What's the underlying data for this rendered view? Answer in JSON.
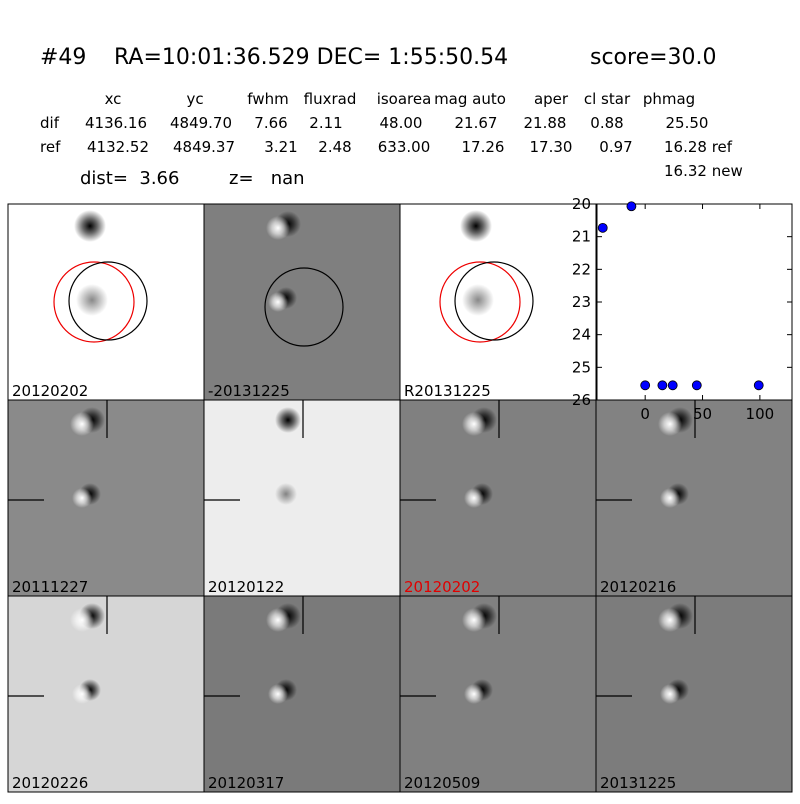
{
  "header": {
    "id": "#49",
    "coords": "RA=10:01:36.529 DEC= 1:55:50.54",
    "score": "score=30.0"
  },
  "table": {
    "columns": [
      "xc",
      "yc",
      "fwhm",
      "fluxrad",
      "isoarea",
      "mag auto",
      "aper",
      "cl star",
      "phmag"
    ],
    "rows": [
      {
        "label": "dif",
        "values": [
          "4136.16",
          "4849.70",
          "7.66",
          "2.11",
          "48.00",
          "21.67",
          "21.88",
          "0.88",
          "25.50"
        ]
      },
      {
        "label": "ref",
        "values": [
          "4132.52",
          "4849.37",
          "3.21",
          "2.48",
          "633.00",
          "17.26",
          "17.30",
          "0.97",
          "16.28 ref"
        ]
      }
    ],
    "extra": "16.32 new"
  },
  "dist": "dist=  3.66",
  "z": "z=   nan",
  "panels": [
    "20120202",
    "-20131225",
    "R20131225",
    "20111227",
    "20120122",
    "20120202",
    "20120216",
    "20120226",
    "20120317",
    "20120509",
    "20131225"
  ],
  "chart_data": {
    "type": "scatter",
    "color": "#0000ff",
    "x": [
      -37,
      -12,
      0,
      15,
      24,
      45,
      99
    ],
    "values": [
      20.73,
      20.07,
      25.55,
      25.55,
      25.55,
      25.55,
      25.55
    ],
    "xlim": [
      -42,
      128
    ],
    "ylim": [
      26,
      20
    ],
    "xticks": [
      0,
      50,
      100
    ],
    "yticks": [
      20,
      21,
      22,
      23,
      24,
      25,
      26
    ]
  }
}
